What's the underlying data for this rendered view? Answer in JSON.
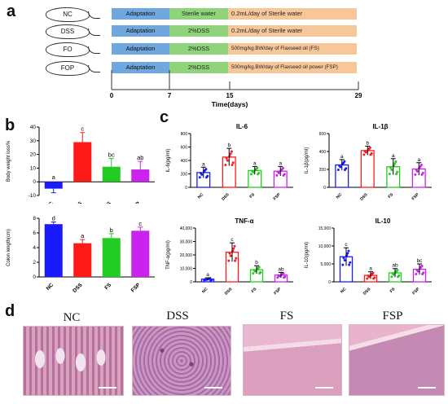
{
  "panels": {
    "a": "a",
    "b": "b",
    "c": "c",
    "d": "d"
  },
  "design": {
    "rows": [
      {
        "group": "NC",
        "adaptation": "Adaptation",
        "treatment": "Sterile water",
        "detail": "0.2mL/day of Sterile water"
      },
      {
        "group": "DSS",
        "adaptation": "Adaptation",
        "treatment": "2%DSS",
        "detail": "0.2mL/day of Sterile water"
      },
      {
        "group": "FO",
        "adaptation": "Adaptation",
        "treatment": "2%DSS",
        "detail": "500mg/kg.BW/day of Flaxseed oil (FS)"
      },
      {
        "group": "FOP",
        "adaptation": "Adaptation",
        "treatment": "2%DSS",
        "detail": "500mg/kg.BW/day of Flaxseed oil power (FSP)"
      }
    ],
    "timeline_ticks": [
      "0",
      "7",
      "15",
      "29"
    ],
    "timeline_label": "Time(days)"
  },
  "colors": {
    "NC": "#1a1aff",
    "DSS": "#ff1a1a",
    "FS": "#22cc22",
    "FSP": "#cc22ee",
    "adaptation": "#6fa7de",
    "green": "#8fd47a",
    "orange": "#f7c79a"
  },
  "chart_data": [
    {
      "type": "bar",
      "id": "body-weight",
      "title": "",
      "ylabel": "Body weight loss%",
      "categories": [
        "NC",
        "DSS",
        "FS",
        "FSP"
      ],
      "values": [
        -5,
        29,
        11,
        9
      ],
      "errors": [
        3,
        7,
        6,
        6
      ],
      "letters": [
        "a",
        "c",
        "bc",
        "ab"
      ],
      "ylim": [
        -10,
        40
      ],
      "yticks": [
        -10,
        0,
        10,
        20,
        30,
        40
      ]
    },
    {
      "type": "bar",
      "id": "colon-length",
      "title": "",
      "ylabel": "Colon length(cm)",
      "categories": [
        "NC",
        "DSS",
        "FS",
        "FSP"
      ],
      "values": [
        7.2,
        4.6,
        5.3,
        6.3
      ],
      "errors": [
        0.3,
        0.5,
        0.6,
        0.5
      ],
      "letters": [
        "d",
        "a",
        "b",
        "c"
      ],
      "ylim": [
        0,
        8
      ],
      "yticks": [
        0,
        2,
        4,
        6,
        8
      ]
    },
    {
      "type": "bar",
      "id": "il6",
      "title": "IL-6",
      "ylabel": "IL-6(pg/ml)",
      "categories": [
        "NC",
        "DSS",
        "FS",
        "FSP"
      ],
      "values": [
        220,
        450,
        250,
        240
      ],
      "errors": [
        80,
        130,
        60,
        70
      ],
      "letters": [
        "a",
        "b",
        "a",
        "a"
      ],
      "ylim": [
        0,
        800
      ],
      "yticks": [
        0,
        200,
        400,
        600,
        800
      ],
      "ytick_labels": [
        "0",
        "200",
        "400",
        "600",
        "800"
      ]
    },
    {
      "type": "bar",
      "id": "il1b",
      "title": "IL-1β",
      "ylabel": "IL-1β(pg/ml)",
      "categories": [
        "NC",
        "DSS",
        "FS",
        "FSP"
      ],
      "values": [
        250,
        410,
        230,
        205
      ],
      "errors": [
        60,
        50,
        90,
        70
      ],
      "letters": [
        "a",
        "b",
        "a",
        "a"
      ],
      "ylim": [
        0,
        600
      ],
      "yticks": [
        0,
        200,
        400,
        600
      ],
      "ytick_labels": [
        "0",
        "200",
        "400",
        "600"
      ]
    },
    {
      "type": "bar",
      "id": "tnfa",
      "title": "TNF-α",
      "ylabel": "TNF-α(pg/ml)",
      "categories": [
        "NC",
        "DSS",
        "FS",
        "FSP"
      ],
      "values": [
        2000,
        22000,
        9000,
        5000
      ],
      "errors": [
        1000,
        7000,
        3000,
        2000
      ],
      "letters": [
        "a",
        "c",
        "b",
        "ab"
      ],
      "ylim": [
        0,
        40000
      ],
      "yticks": [
        0,
        10000,
        20000,
        30000,
        40000
      ],
      "ytick_labels": [
        "0",
        "10,000",
        "20,000",
        "30,000",
        "40,000"
      ]
    },
    {
      "type": "bar",
      "id": "il10",
      "title": "IL-10",
      "ylabel": "IL-10(pg/ml)",
      "categories": [
        "NC",
        "DSS",
        "FS",
        "FSP"
      ],
      "values": [
        7000,
        1800,
        2500,
        3500
      ],
      "errors": [
        2500,
        1000,
        1200,
        1500
      ],
      "letters": [
        "c",
        "a",
        "ab",
        "bc"
      ],
      "ylim": [
        0,
        15000
      ],
      "yticks": [
        0,
        5000,
        10000,
        15000
      ],
      "ytick_labels": [
        "0",
        "5,000",
        "10,000",
        "15,000"
      ]
    }
  ],
  "histology": {
    "labels": [
      "NC",
      "DSS",
      "FS",
      "FSP"
    ]
  }
}
